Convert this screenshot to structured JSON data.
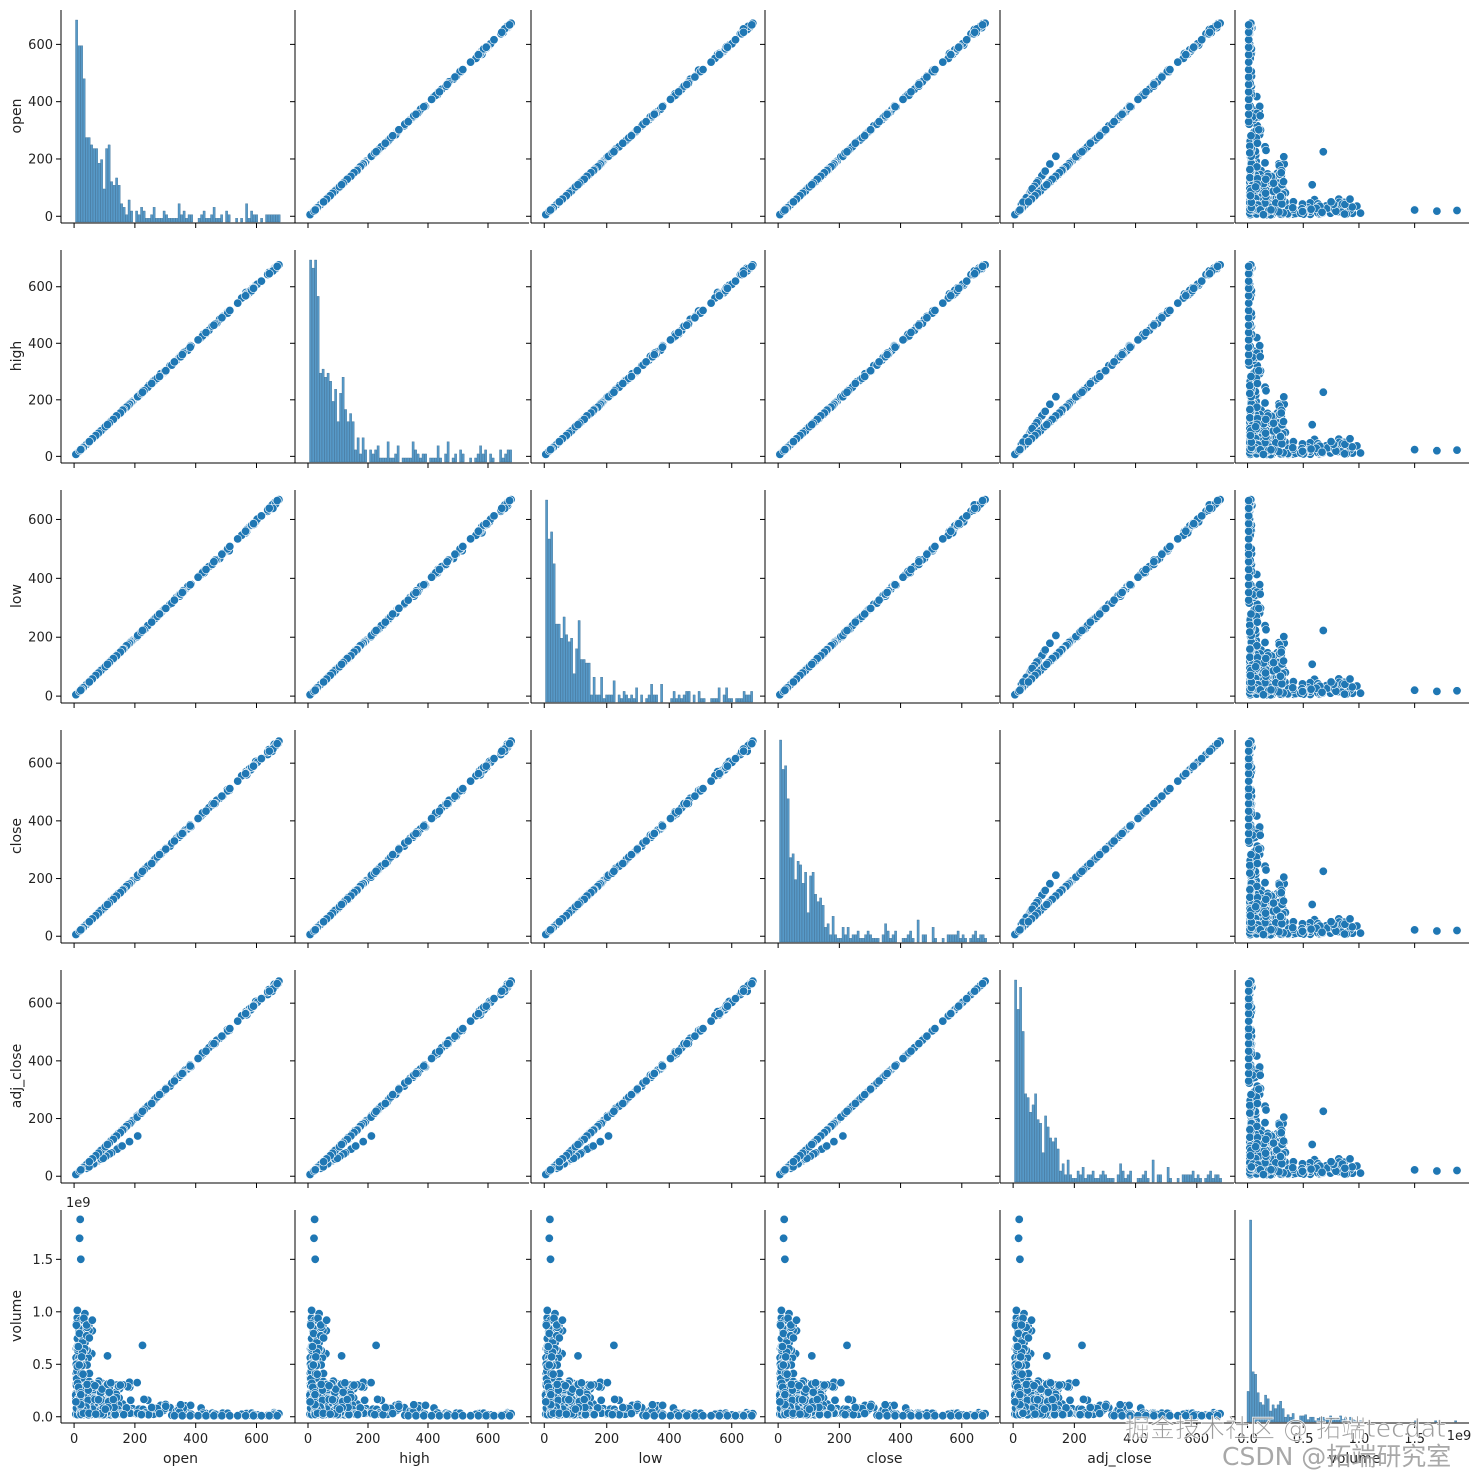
{
  "chart_data": {
    "type": "pairplot",
    "variables": [
      "open",
      "high",
      "low",
      "close",
      "adj_close",
      "volume"
    ],
    "diagonal": "histogram",
    "offdiagonal": "scatter",
    "color": "#1f77b4",
    "edge_color": "#ffffff",
    "axes": {
      "open": {
        "range": [
          -20,
          720
        ],
        "ticks": [
          0,
          200,
          400,
          600
        ],
        "tick_labels": [
          "0",
          "200",
          "400",
          "600"
        ]
      },
      "high": {
        "range": [
          -20,
          730
        ],
        "ticks": [
          0,
          200,
          400,
          600
        ],
        "tick_labels": [
          "0",
          "200",
          "400",
          "600"
        ]
      },
      "low": {
        "range": [
          -20,
          700
        ],
        "ticks": [
          0,
          200,
          400,
          600
        ],
        "tick_labels": [
          "0",
          "200",
          "400",
          "600"
        ]
      },
      "close": {
        "range": [
          -20,
          715
        ],
        "ticks": [
          0,
          200,
          400,
          600
        ],
        "tick_labels": [
          "0",
          "200",
          "400",
          "600"
        ]
      },
      "adj_close": {
        "range": [
          -20,
          715
        ],
        "ticks": [
          0,
          200,
          400,
          600
        ],
        "tick_labels": [
          "0",
          "200",
          "400",
          "600"
        ]
      },
      "volume": {
        "range": [
          -0.05,
          1.97
        ],
        "ticks": [
          0.0,
          0.5,
          1.0,
          1.5
        ],
        "tick_labels": [
          "0.0",
          "0.5",
          "1.0",
          "1.5"
        ],
        "offset_text": "1e9"
      }
    },
    "price_distribution_peaks": [
      {
        "x": 18,
        "count": 540
      },
      {
        "x": 25,
        "count": 430
      },
      {
        "x": 130,
        "count": 70
      }
    ],
    "volume_outliers": [
      {
        "price": 20,
        "volume": 1.88
      },
      {
        "price": 18,
        "volume": 1.7
      },
      {
        "price": 22,
        "volume": 1.5
      },
      {
        "price": 110,
        "volume": 0.58
      },
      {
        "price": 225,
        "volume": 0.68
      },
      {
        "price": 60,
        "volume": 0.92
      },
      {
        "price": 50,
        "volume": 0.75
      }
    ]
  },
  "watermark": {
    "line1": "掘金技术社区 @ 拓端tecdat",
    "line2": "CSDN @拓端研究室"
  }
}
